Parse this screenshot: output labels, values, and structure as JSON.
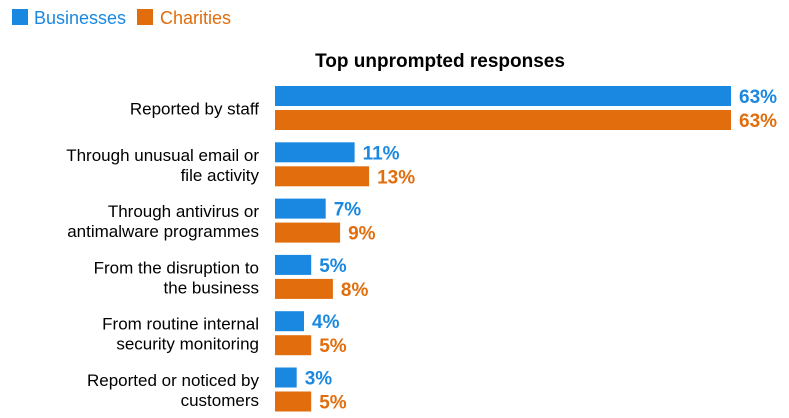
{
  "colors": {
    "businesses": "#1a88e0",
    "charities": "#e16d0d"
  },
  "legend": [
    {
      "name": "Businesses",
      "color": "#1a88e0"
    },
    {
      "name": "Charities",
      "color": "#e16d0d"
    }
  ],
  "chart_data": {
    "type": "bar",
    "orientation": "horizontal",
    "title": "Top unprompted responses",
    "xlabel": "",
    "ylabel": "",
    "xlim": [
      0,
      63
    ],
    "grid": false,
    "legend_position": "top-left",
    "categories": [
      [
        "Reported by staff"
      ],
      [
        "Through unusual email or",
        "file activity"
      ],
      [
        "Through antivirus or",
        "antimalware programmes"
      ],
      [
        "From the disruption to",
        "the business"
      ],
      [
        "From routine internal",
        "security monitoring"
      ],
      [
        "Reported or noticed by",
        "customers"
      ]
    ],
    "series": [
      {
        "name": "Businesses",
        "color": "#1a88e0",
        "values": [
          63,
          11,
          7,
          5,
          4,
          3
        ],
        "labels": [
          "63%",
          "11%",
          "7%",
          "5%",
          "4%",
          "3%"
        ]
      },
      {
        "name": "Charities",
        "color": "#e16d0d",
        "values": [
          63,
          13,
          9,
          8,
          5,
          5
        ],
        "labels": [
          "63%",
          "13%",
          "9%",
          "8%",
          "5%",
          "5%"
        ]
      }
    ]
  }
}
